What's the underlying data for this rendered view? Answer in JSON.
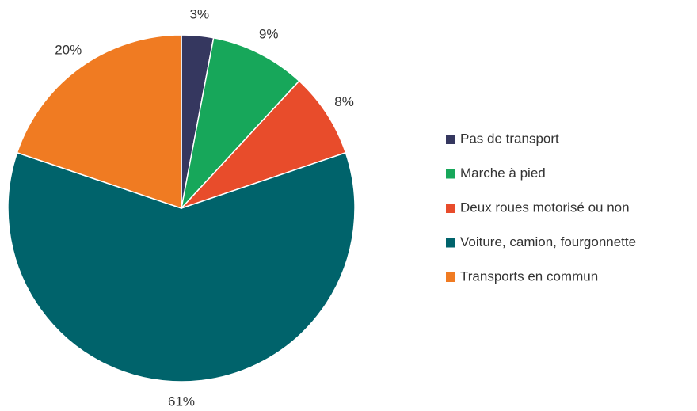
{
  "chart_data": {
    "type": "pie",
    "categories": [
      "Pas de transport",
      "Marche à pied",
      "Deux roues motorisé ou non",
      "Voiture, camion, fourgonnette",
      "Transports en commun"
    ],
    "values": [
      3,
      9,
      8,
      61,
      20
    ],
    "value_labels": [
      "3%",
      "9%",
      "8%",
      "61%",
      "20%"
    ],
    "colors": [
      "#35375f",
      "#17a75a",
      "#e84c2b",
      "#00636b",
      "#f07b22"
    ],
    "legend": "right"
  }
}
